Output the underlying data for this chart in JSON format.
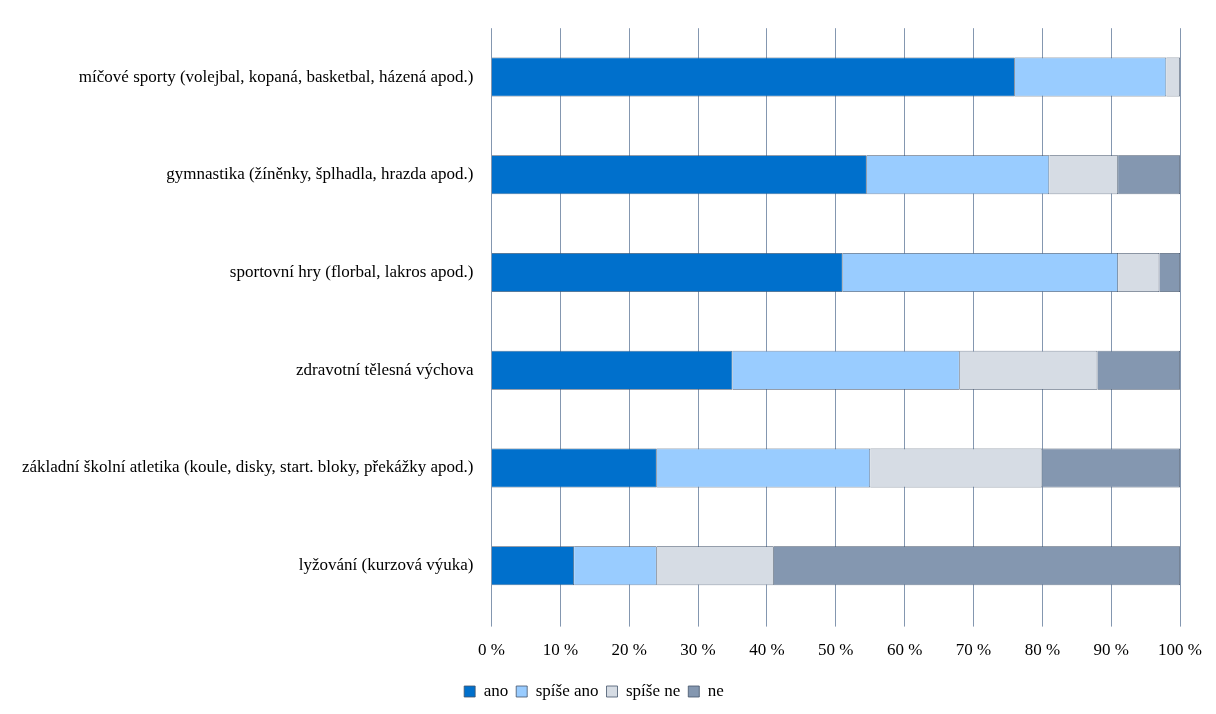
{
  "chart_data": {
    "type": "bar",
    "orientation": "horizontal",
    "stacked": true,
    "categories": [
      "míčové sporty (volejbal, kopaná, basketbal, házená apod.)",
      "gymnastika (žíněnky, šplhadla, hrazda apod.)",
      "sportovní hry (florbal, lakros apod.)",
      "zdravotní tělesná výchova",
      "základní školní atletika (koule, disky, start. bloky, překážky apod.)",
      "lyžování (kurzová výuka)"
    ],
    "series": [
      {
        "name": "ano",
        "color": "#0070cc",
        "values": [
          76,
          54.5,
          51,
          35,
          24,
          12
        ]
      },
      {
        "name": "spíše ano",
        "color": "#99ccff",
        "values": [
          22,
          26.5,
          40,
          33,
          31,
          12
        ]
      },
      {
        "name": "spíše ne",
        "color": "#d6dce4",
        "values": [
          2,
          10,
          6,
          20,
          25,
          17
        ]
      },
      {
        "name": "ne",
        "color": "#8497b0",
        "values": [
          0,
          9,
          3,
          12,
          20,
          59
        ]
      }
    ],
    "xlim": [
      0,
      100
    ],
    "xticks": [
      {
        "value": 0,
        "label": "0 %"
      },
      {
        "value": 10,
        "label": "10 %"
      },
      {
        "value": 20,
        "label": "20 %"
      },
      {
        "value": 30,
        "label": "30 %"
      },
      {
        "value": 40,
        "label": "40 %"
      },
      {
        "value": 50,
        "label": "50 %"
      },
      {
        "value": 60,
        "label": "60 %"
      },
      {
        "value": 70,
        "label": "70 %"
      },
      {
        "value": 80,
        "label": "80 %"
      },
      {
        "value": 90,
        "label": "90 %"
      },
      {
        "value": 100,
        "label": "100 %"
      }
    ],
    "grid": "x",
    "legend": "bottom"
  }
}
